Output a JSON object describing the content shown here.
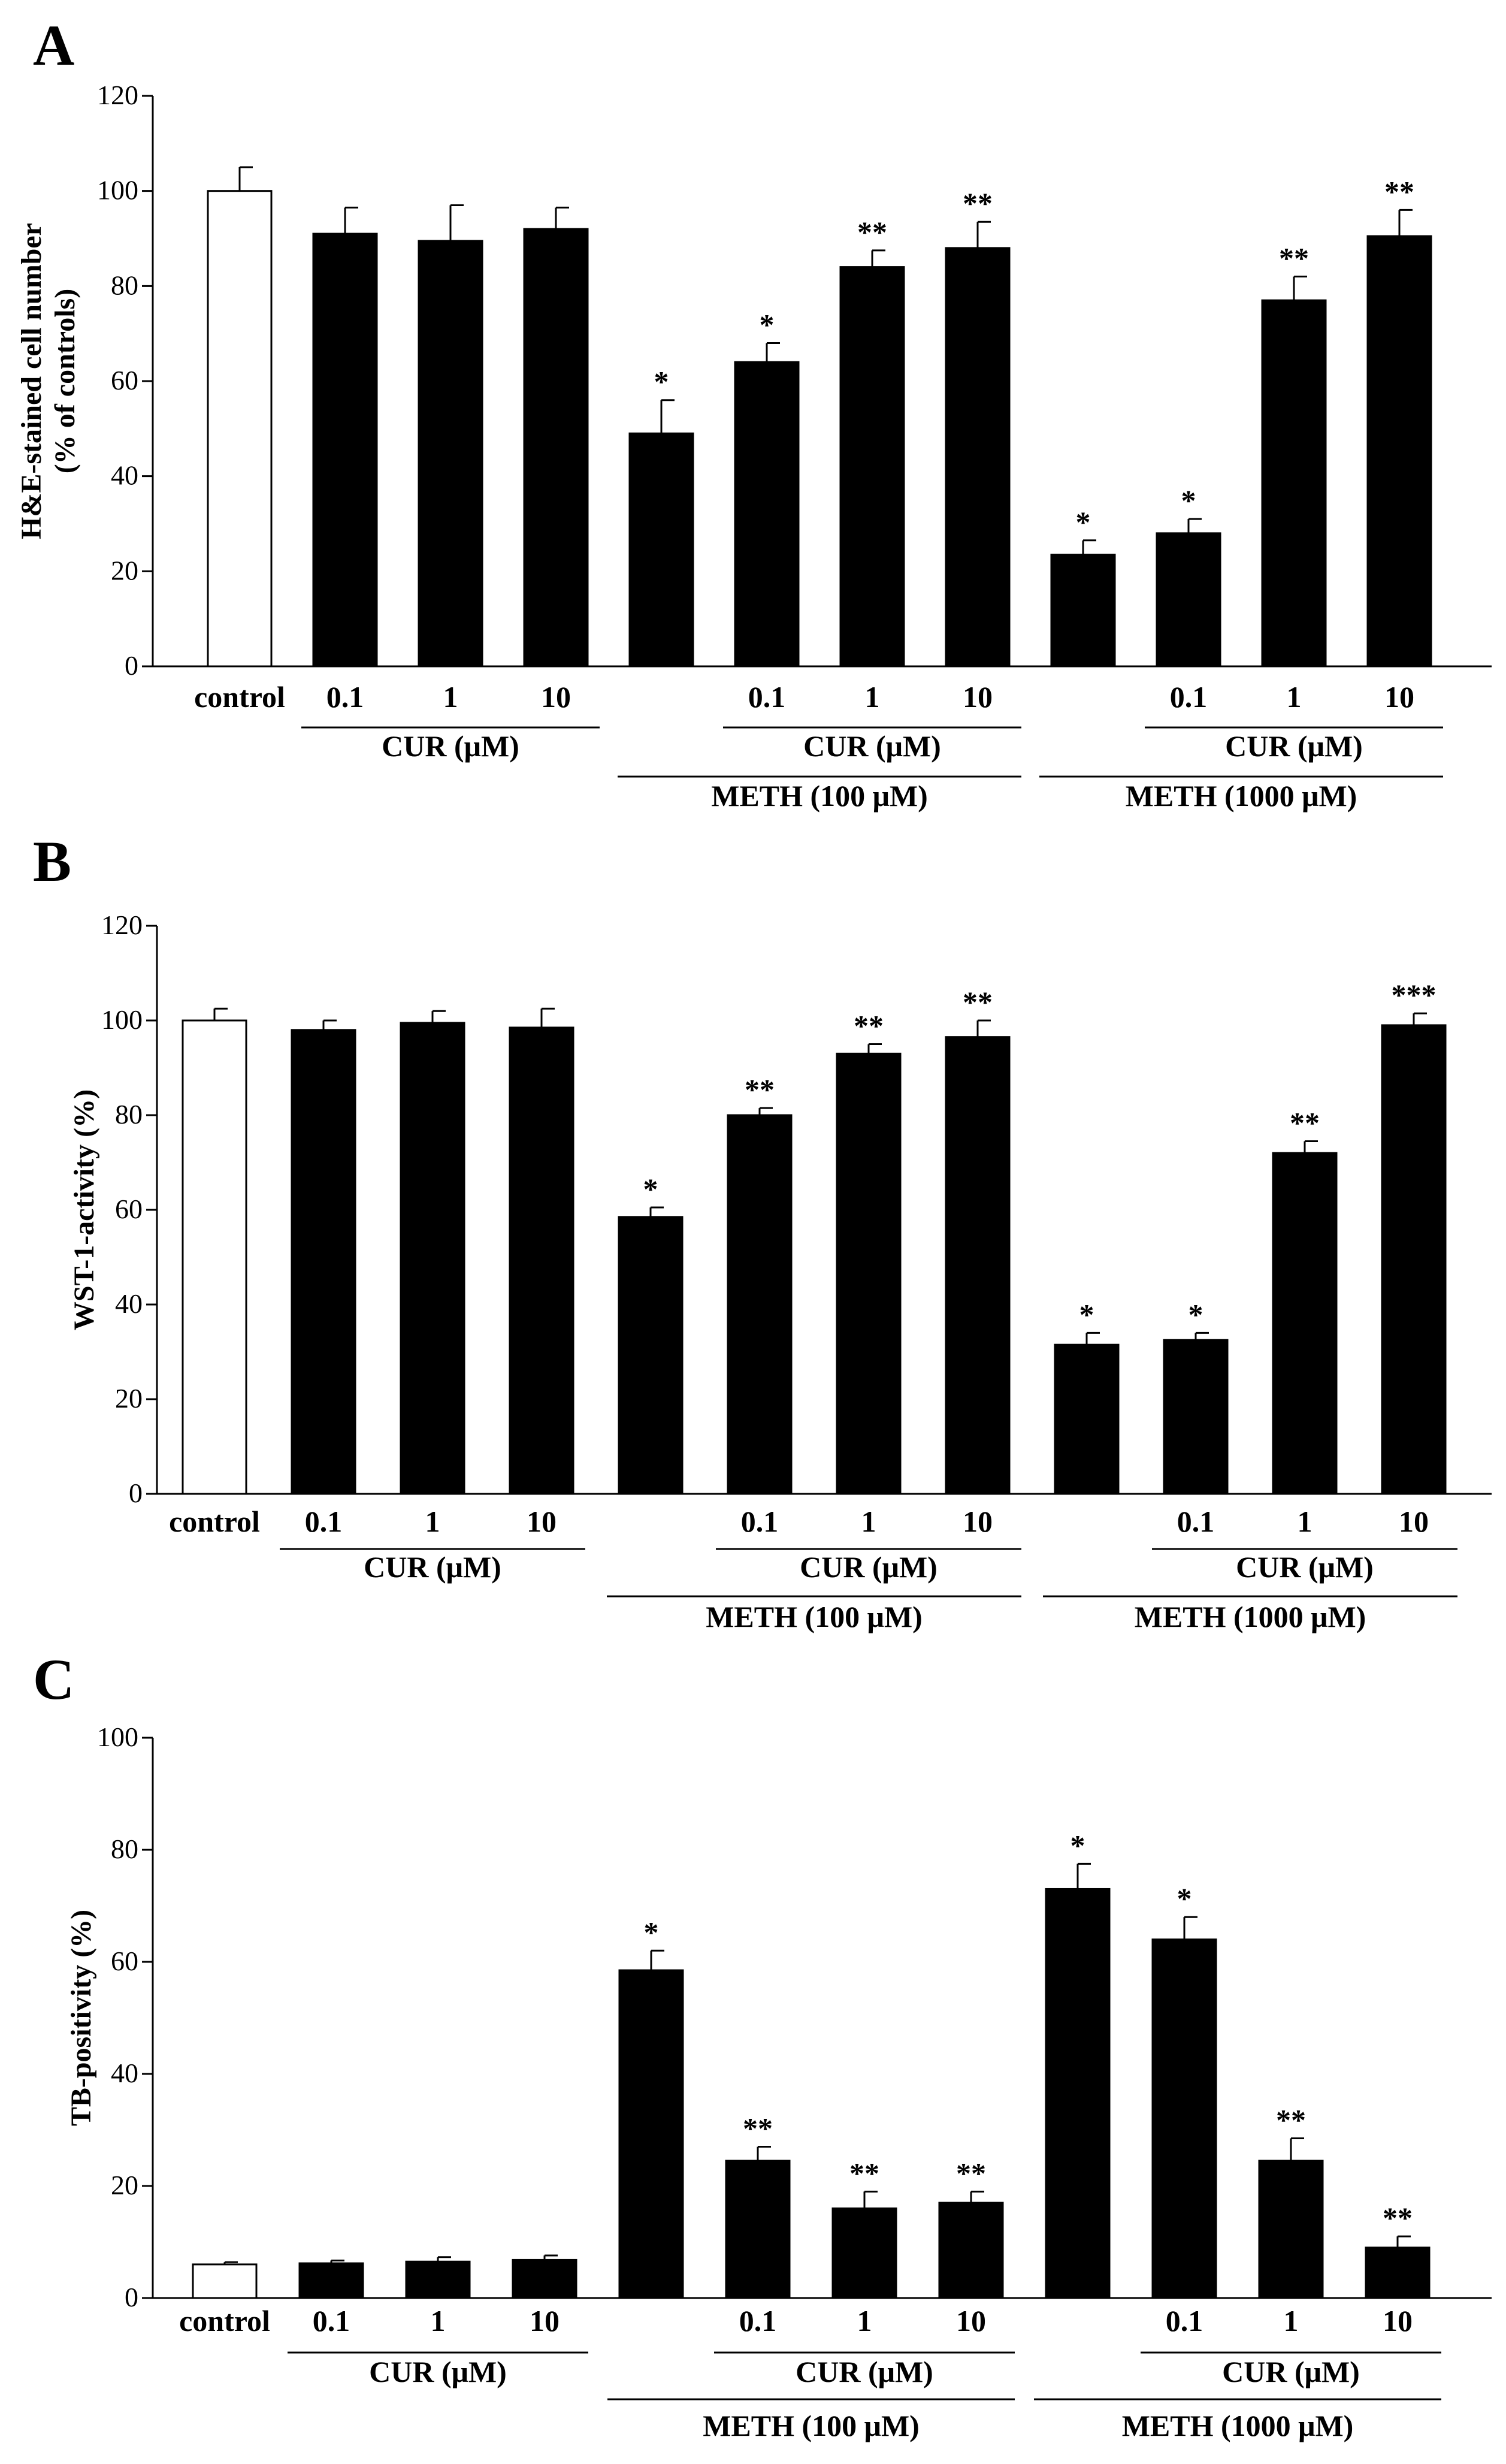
{
  "figure": {
    "chart_data": [
      {
        "type": "bar",
        "panel": "A",
        "ylabel_lines": [
          "H&E-stained cell number",
          "(% of controls)"
        ],
        "ylim": [
          0,
          120
        ],
        "yticks": [
          0,
          20,
          40,
          60,
          80,
          100,
          120
        ],
        "categories": [
          "control",
          "0.1",
          "1",
          "10",
          "",
          "0.1",
          "1",
          "10",
          "",
          "0.1",
          "1",
          "10"
        ],
        "values": [
          100,
          91,
          89.5,
          92,
          49,
          64,
          84,
          88,
          23.5,
          28,
          77,
          90.5
        ],
        "errors": [
          5,
          5.5,
          7.5,
          4.5,
          7,
          4,
          3.5,
          5.5,
          3,
          3,
          5,
          5.5
        ],
        "significance": [
          "",
          "",
          "",
          "",
          "*",
          "*",
          "**",
          "**",
          "*",
          "*",
          "**",
          "**"
        ],
        "fill": [
          "#ffffff",
          "#000000",
          "#000000",
          "#000000",
          "#000000",
          "#000000",
          "#000000",
          "#000000",
          "#000000",
          "#000000",
          "#000000",
          "#000000"
        ],
        "groups": [
          {
            "label": "CUR (μM)",
            "bars": [
              1,
              3
            ],
            "level": 1
          },
          {
            "label": "CUR (μM)",
            "bars": [
              5,
              7
            ],
            "level": 1
          },
          {
            "label": "METH (100  μM)",
            "bars": [
              4,
              7
            ],
            "level": 2
          },
          {
            "label": "CUR (μM)",
            "bars": [
              9,
              11
            ],
            "level": 1
          },
          {
            "label": "METH (1000  μM)",
            "bars": [
              8,
              11
            ],
            "level": 2
          }
        ]
      },
      {
        "type": "bar",
        "panel": "B",
        "ylabel_lines": [
          "WST-1-activity (%)"
        ],
        "ylim": [
          0,
          120
        ],
        "yticks": [
          0,
          20,
          40,
          60,
          80,
          100,
          120
        ],
        "categories": [
          "control",
          "0.1",
          "1",
          "10",
          "",
          "0.1",
          "1",
          "10",
          "",
          "0.1",
          "1",
          "10"
        ],
        "values": [
          100,
          98,
          99.5,
          98.5,
          58.5,
          80,
          93,
          96.5,
          31.5,
          32.5,
          72,
          99
        ],
        "errors": [
          2.5,
          2,
          2.5,
          4,
          2,
          1.5,
          2,
          3.5,
          2.5,
          1.5,
          2.5,
          2.5
        ],
        "significance": [
          "",
          "",
          "",
          "",
          "*",
          "**",
          "**",
          "**",
          "*",
          "*",
          "**",
          "***"
        ],
        "fill": [
          "#ffffff",
          "#000000",
          "#000000",
          "#000000",
          "#000000",
          "#000000",
          "#000000",
          "#000000",
          "#000000",
          "#000000",
          "#000000",
          "#000000"
        ],
        "groups": [
          {
            "label": "CUR (μM)",
            "bars": [
              1,
              3
            ],
            "level": 1
          },
          {
            "label": "CUR (μM)",
            "bars": [
              5,
              7
            ],
            "level": 1
          },
          {
            "label": "METH (100  μM)",
            "bars": [
              4,
              7
            ],
            "level": 2
          },
          {
            "label": "CUR (μM)",
            "bars": [
              9,
              11
            ],
            "level": 1
          },
          {
            "label": "METH (1000  μM)",
            "bars": [
              8,
              11
            ],
            "level": 2
          }
        ]
      },
      {
        "type": "bar",
        "panel": "C",
        "ylabel_lines": [
          "TB-positivity (%)"
        ],
        "ylim": [
          0,
          100
        ],
        "yticks": [
          0,
          20,
          40,
          60,
          80,
          100
        ],
        "categories": [
          "control",
          "0.1",
          "1",
          "10",
          "",
          "0.1",
          "1",
          "10",
          "",
          "0.1",
          "1",
          "10"
        ],
        "values": [
          6,
          6.2,
          6.5,
          6.8,
          58.5,
          24.5,
          16,
          17,
          73,
          64,
          24.5,
          9
        ],
        "errors": [
          0.4,
          0.5,
          0.8,
          0.8,
          3.5,
          2.5,
          3,
          2,
          4.5,
          4,
          4,
          2
        ],
        "significance": [
          "",
          "",
          "",
          "",
          "*",
          "**",
          "**",
          "**",
          "*",
          "*",
          "**",
          "**"
        ],
        "fill": [
          "#ffffff",
          "#000000",
          "#000000",
          "#000000",
          "#000000",
          "#000000",
          "#000000",
          "#000000",
          "#000000",
          "#000000",
          "#000000",
          "#000000"
        ],
        "groups": [
          {
            "label": "CUR (μM)",
            "bars": [
              1,
              3
            ],
            "level": 1
          },
          {
            "label": "CUR (μM)",
            "bars": [
              5,
              7
            ],
            "level": 1
          },
          {
            "label": "METH (100  μM)",
            "bars": [
              4,
              7
            ],
            "level": 2
          },
          {
            "label": "CUR (μM)",
            "bars": [
              9,
              11
            ],
            "level": 1
          },
          {
            "label": "METH (1000  μM)",
            "bars": [
              8,
              11
            ],
            "level": 2
          }
        ]
      }
    ]
  }
}
